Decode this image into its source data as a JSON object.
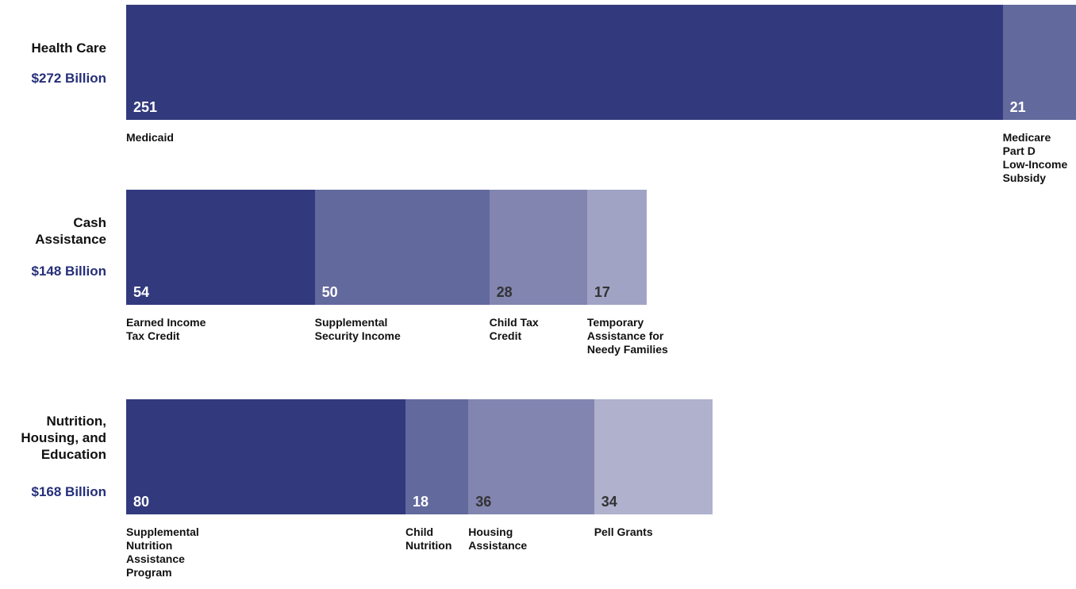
{
  "chart_data": {
    "type": "bar",
    "orientation": "horizontal",
    "stacked": true,
    "title": "",
    "xlabel": "",
    "ylabel": "",
    "categories": [
      {
        "name": "Health Care",
        "total": "$272 Billion",
        "segments": [
          {
            "label": "Medicaid",
            "value": 251,
            "value_label": "251",
            "color": "#323a7d"
          },
          {
            "label": "Medicare\nPart D\nLow-Income\nSubsidy",
            "value": 21,
            "value_label": "21",
            "color": "#62699d"
          }
        ]
      },
      {
        "name": "Cash\nAssistance",
        "total": "$148 Billion",
        "segments": [
          {
            "label": "Earned Income\nTax Credit",
            "value": 54,
            "value_label": "54",
            "color": "#323a7d"
          },
          {
            "label": "Supplemental\nSecurity Income",
            "value": 50,
            "value_label": "50",
            "color": "#62699d"
          },
          {
            "label": "Child Tax\nCredit",
            "value": 28,
            "value_label": "28",
            "color": "#8185b0"
          },
          {
            "label": "Temporary\nAssistance for\nNeedy Families",
            "value": 17,
            "value_label": "17",
            "color": "#a1a3c5"
          }
        ]
      },
      {
        "name": "Nutrition,\nHousing, and\nEducation",
        "total": "$168 Billion",
        "segments": [
          {
            "label": "Supplemental\nNutrition\nAssistance\nProgram",
            "value": 80,
            "value_label": "80",
            "color": "#323a7d"
          },
          {
            "label": "Child\nNutrition",
            "value": 18,
            "value_label": "18",
            "color": "#62699d"
          },
          {
            "label": "Housing\nAssistance",
            "value": 36,
            "value_label": "36",
            "color": "#8185b0"
          },
          {
            "label": "Pell Grants",
            "value": 34,
            "value_label": "34",
            "color": "#afb1cd"
          }
        ]
      }
    ],
    "xlim": [
      0,
      272
    ],
    "grid": false,
    "legend": "none"
  },
  "colors": {
    "total_text": "#262f7a",
    "value_light": "#ffffff",
    "value_dark": "#333333"
  }
}
